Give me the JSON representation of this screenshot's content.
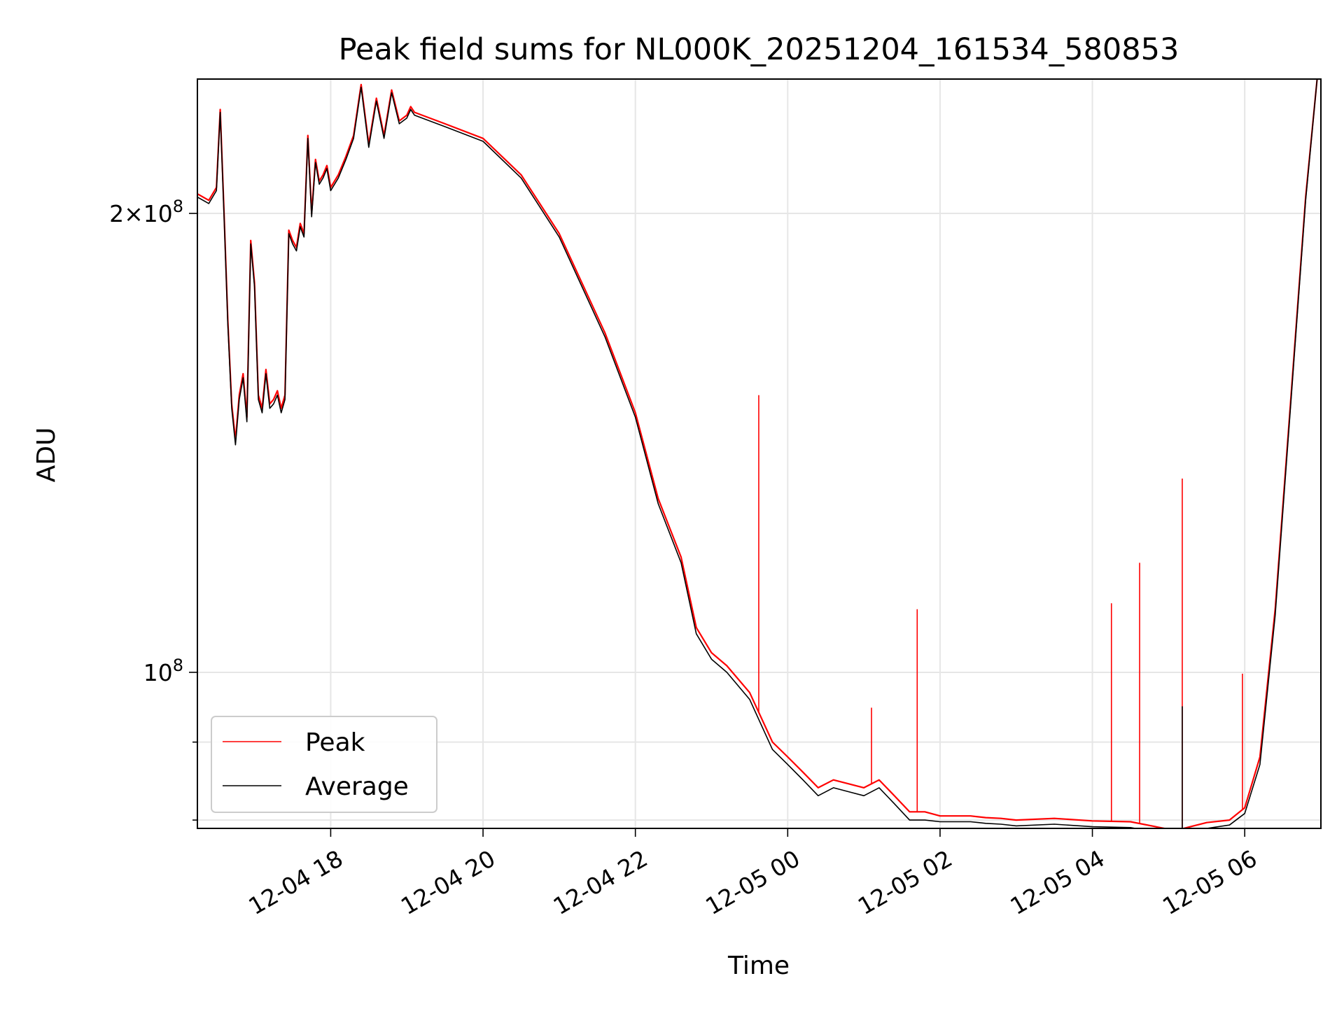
{
  "chart_data": {
    "type": "line",
    "title": "Peak field sums for NL000K_20251204_161534_580853",
    "xlabel": "Time",
    "ylabel": "ADU",
    "yscale": "log",
    "grid": true,
    "legend_position": "lower-left",
    "x_range_hours": [
      -1.75,
      13.0
    ],
    "ylim": [
      79000000,
      245000000
    ],
    "x_ticks": [
      {
        "label": "12-04 18",
        "value": 0
      },
      {
        "label": "12-04 20",
        "value": 2
      },
      {
        "label": "12-04 22",
        "value": 4
      },
      {
        "label": "12-05 00",
        "value": 6
      },
      {
        "label": "12-05 02",
        "value": 8
      },
      {
        "label": "12-05 04",
        "value": 10
      },
      {
        "label": "12-05 06",
        "value": 12
      }
    ],
    "y_ticks_major": [
      {
        "label": "2×10⁸",
        "base": "2",
        "times": "×",
        "power": "10",
        "exp": "8",
        "value": 200000000
      },
      {
        "label": "10⁸",
        "base": "",
        "times": "",
        "power": "10",
        "exp": "8",
        "value": 100000000
      }
    ],
    "y_ticks_minor": [
      90000000,
      80000000
    ],
    "x_unit": "hours since 12-04 18:00",
    "series": [
      {
        "name": "Peak",
        "color": "#ff0000",
        "x": [
          -1.75,
          -1.6,
          -1.5,
          -1.45,
          -1.4,
          -1.35,
          -1.3,
          -1.25,
          -1.2,
          -1.15,
          -1.1,
          -1.05,
          -1.0,
          -0.95,
          -0.9,
          -0.85,
          -0.8,
          -0.75,
          -0.7,
          -0.65,
          -0.6,
          -0.55,
          -0.5,
          -0.45,
          -0.4,
          -0.35,
          -0.3,
          -0.25,
          -0.2,
          -0.15,
          -0.1,
          -0.05,
          0.0,
          0.1,
          0.2,
          0.3,
          0.4,
          0.5,
          0.6,
          0.7,
          0.8,
          0.9,
          1.0,
          1.05,
          1.1,
          1.2,
          1.5,
          2.0,
          2.5,
          3.0,
          3.3,
          3.6,
          4.0,
          4.3,
          4.6,
          4.8,
          5.0,
          5.2,
          5.5,
          5.8,
          6.0,
          6.2,
          6.4,
          6.6,
          6.8,
          7.0,
          7.2,
          7.4,
          7.6,
          7.8,
          8.0,
          8.2,
          8.4,
          8.6,
          8.8,
          9.0,
          9.5,
          10.0,
          10.5,
          11.0,
          11.2,
          11.5,
          11.8,
          12.0,
          12.2,
          12.4,
          12.6,
          12.8,
          12.95
        ],
        "y": [
          206000000,
          204000000,
          208000000,
          234000000,
          200000000,
          170000000,
          150000000,
          142000000,
          152000000,
          157000000,
          147000000,
          192000000,
          180000000,
          152000000,
          149000000,
          158000000,
          150000000,
          151000000,
          153000000,
          149000000,
          152000000,
          195000000,
          192000000,
          190000000,
          197000000,
          194000000,
          225000000,
          200000000,
          217000000,
          210000000,
          212000000,
          215000000,
          208000000,
          212000000,
          218000000,
          225000000,
          243000000,
          222000000,
          238000000,
          225000000,
          241000000,
          230000000,
          232000000,
          235000000,
          233000000,
          232000000,
          229000000,
          224000000,
          212000000,
          194000000,
          180000000,
          167000000,
          148000000,
          130000000,
          119000000,
          107000000,
          103000000,
          101000000,
          97000000,
          90000000,
          88000000,
          86000000,
          84000000,
          85000000,
          84500000,
          84000000,
          85000000,
          83000000,
          81000000,
          81000000,
          80500000,
          80500000,
          80500000,
          80300000,
          80200000,
          80000000,
          80200000,
          79900000,
          79800000,
          78900000,
          79000000,
          79700000,
          80000000,
          81500000,
          88000000,
          110000000,
          150000000,
          205000000,
          245000000
        ]
      },
      {
        "name": "Average",
        "color": "#000000",
        "x": [
          -1.75,
          -1.6,
          -1.5,
          -1.45,
          -1.4,
          -1.35,
          -1.3,
          -1.25,
          -1.2,
          -1.15,
          -1.1,
          -1.05,
          -1.0,
          -0.95,
          -0.9,
          -0.85,
          -0.8,
          -0.75,
          -0.7,
          -0.65,
          -0.6,
          -0.55,
          -0.5,
          -0.45,
          -0.4,
          -0.35,
          -0.3,
          -0.25,
          -0.2,
          -0.15,
          -0.1,
          -0.05,
          0.0,
          0.1,
          0.2,
          0.3,
          0.4,
          0.5,
          0.6,
          0.7,
          0.8,
          0.9,
          1.0,
          1.05,
          1.1,
          1.2,
          1.5,
          2.0,
          2.5,
          3.0,
          3.3,
          3.6,
          4.0,
          4.3,
          4.6,
          4.8,
          5.0,
          5.2,
          5.5,
          5.8,
          6.0,
          6.2,
          6.4,
          6.6,
          6.8,
          7.0,
          7.2,
          7.4,
          7.6,
          7.8,
          8.0,
          8.2,
          8.4,
          8.6,
          8.8,
          9.0,
          9.5,
          10.0,
          10.5,
          11.0,
          11.2,
          11.5,
          11.8,
          12.0,
          12.2,
          12.4,
          12.6,
          12.8,
          12.95
        ],
        "y": [
          205000000,
          203000000,
          207000000,
          233000000,
          199000000,
          169000000,
          149000000,
          141000000,
          151000000,
          156000000,
          146000000,
          191000000,
          179000000,
          151000000,
          148000000,
          157000000,
          149000000,
          150000000,
          152000000,
          148000000,
          151000000,
          194000000,
          191000000,
          189000000,
          196000000,
          193000000,
          224000000,
          199000000,
          216000000,
          209000000,
          211000000,
          214000000,
          207000000,
          211000000,
          217000000,
          224000000,
          242000000,
          221000000,
          237000000,
          224000000,
          240000000,
          229000000,
          231000000,
          234000000,
          232000000,
          231000000,
          228000000,
          223000000,
          211000000,
          193000000,
          179000000,
          166000000,
          147000000,
          129000000,
          118000000,
          106000000,
          102000000,
          100000000,
          96000000,
          89000000,
          87000000,
          85000000,
          83000000,
          84000000,
          83500000,
          83000000,
          84000000,
          82000000,
          80000000,
          80000000,
          79800000,
          79800000,
          79800000,
          79600000,
          79500000,
          79300000,
          79500000,
          79200000,
          79100000,
          78300000,
          78400000,
          79000000,
          79400000,
          80800000,
          87000000,
          109000000,
          149000000,
          204000000,
          245000000
        ]
      }
    ],
    "spikes": [
      {
        "series": "Peak",
        "x": 5.62,
        "y": 152000000
      },
      {
        "series": "Peak",
        "x": 7.1,
        "y": 94800000
      },
      {
        "series": "Peak",
        "x": 7.7,
        "y": 110000000
      },
      {
        "series": "Peak",
        "x": 10.25,
        "y": 111000000
      },
      {
        "series": "Peak",
        "x": 10.62,
        "y": 118000000
      },
      {
        "series": "Peak",
        "x": 11.18,
        "y": 134000000
      },
      {
        "series": "Peak",
        "x": 11.97,
        "y": 99800000
      },
      {
        "series": "Average",
        "x": 11.18,
        "y": 95000000
      }
    ]
  }
}
